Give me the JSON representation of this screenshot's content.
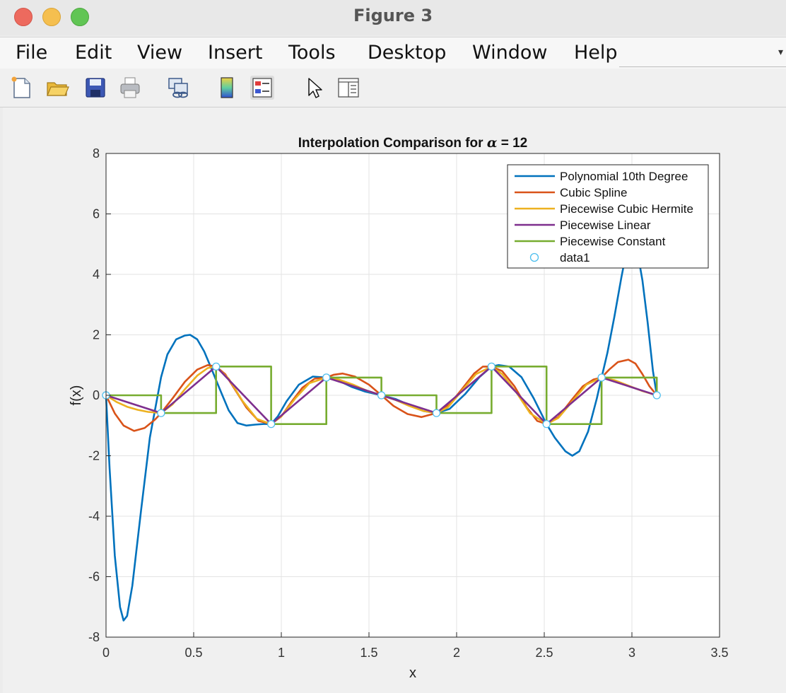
{
  "window": {
    "title": "Figure 3"
  },
  "menu": {
    "items": [
      "File",
      "Edit",
      "View",
      "Insert",
      "Tools",
      "Desktop",
      "Window",
      "Help"
    ]
  },
  "toolbar": {
    "buttons": [
      "new-figure",
      "open-file",
      "save",
      "print",
      "link-plot",
      "insert-colorbar",
      "insert-legend",
      "edit-plot-pointer",
      "property-inspector"
    ]
  },
  "chart_data": {
    "type": "line",
    "title": "Interpolation Comparison for α = 12",
    "title_prefix": "Interpolation Comparison for ",
    "title_symbol": "α",
    "title_suffix": " = 12",
    "xlabel": "x",
    "ylabel": "f(x)",
    "xlim": [
      0,
      3.5
    ],
    "ylim": [
      -8,
      8
    ],
    "xticks": [
      0,
      0.5,
      1,
      1.5,
      2,
      2.5,
      3,
      3.5
    ],
    "xtick_labels": [
      "0",
      "0.5",
      "1",
      "1.5",
      "2",
      "2.5",
      "3",
      "3.5"
    ],
    "yticks": [
      -8,
      -6,
      -4,
      -2,
      0,
      2,
      4,
      6,
      8
    ],
    "ytick_labels": [
      "-8",
      "-6",
      "-4",
      "-2",
      "0",
      "2",
      "4",
      "6",
      "8"
    ],
    "grid": true,
    "legend_position": "top-right",
    "nodes": {
      "x": [
        0,
        0.314,
        0.628,
        0.942,
        1.257,
        1.571,
        1.885,
        2.199,
        2.513,
        2.827,
        3.142
      ],
      "y": [
        0,
        -0.588,
        0.951,
        -0.951,
        0.588,
        0,
        -0.588,
        0.951,
        -0.951,
        0.588,
        0
      ]
    },
    "series": [
      {
        "name": "Polynomial 10th Degree",
        "color": "#0072BD",
        "style": "line",
        "x": [
          0,
          0.02,
          0.05,
          0.08,
          0.1,
          0.12,
          0.15,
          0.2,
          0.25,
          0.314,
          0.35,
          0.4,
          0.45,
          0.48,
          0.52,
          0.56,
          0.6,
          0.628,
          0.66,
          0.7,
          0.75,
          0.8,
          0.85,
          0.9,
          0.942,
          0.98,
          1.03,
          1.1,
          1.18,
          1.257,
          1.32,
          1.4,
          1.48,
          1.571,
          1.65,
          1.73,
          1.81,
          1.885,
          1.96,
          2.05,
          2.13,
          2.199,
          2.24,
          2.3,
          2.37,
          2.44,
          2.513,
          2.56,
          2.62,
          2.66,
          2.7,
          2.75,
          2.8,
          2.827,
          2.86,
          2.9,
          2.94,
          2.97,
          3.0,
          3.03,
          3.06,
          3.09,
          3.12,
          3.142
        ],
        "y": [
          0,
          -2.4,
          -5.3,
          -7.0,
          -7.45,
          -7.3,
          -6.3,
          -3.8,
          -1.4,
          0.6,
          1.35,
          1.85,
          1.98,
          2.0,
          1.85,
          1.45,
          0.9,
          0.5,
          0.05,
          -0.5,
          -0.92,
          -1.0,
          -0.97,
          -0.95,
          -0.95,
          -0.7,
          -0.2,
          0.35,
          0.62,
          0.588,
          0.5,
          0.28,
          0.12,
          0.0,
          -0.12,
          -0.32,
          -0.52,
          -0.588,
          -0.45,
          0.05,
          0.6,
          0.951,
          1.0,
          0.95,
          0.6,
          -0.1,
          -0.951,
          -1.4,
          -1.85,
          -2.0,
          -1.85,
          -1.2,
          -0.1,
          0.588,
          1.4,
          2.6,
          3.9,
          4.8,
          5.2,
          4.8,
          3.8,
          2.4,
          0.8,
          0.0
        ]
      },
      {
        "name": "Cubic Spline",
        "color": "#D95319",
        "style": "line",
        "x": [
          0,
          0.05,
          0.1,
          0.16,
          0.22,
          0.28,
          0.314,
          0.38,
          0.45,
          0.52,
          0.58,
          0.628,
          0.68,
          0.74,
          0.8,
          0.87,
          0.942,
          1.0,
          1.06,
          1.12,
          1.19,
          1.257,
          1.3,
          1.35,
          1.42,
          1.5,
          1.571,
          1.64,
          1.72,
          1.8,
          1.885,
          1.96,
          2.03,
          2.1,
          2.15,
          2.199,
          2.26,
          2.33,
          2.4,
          2.46,
          2.513,
          2.58,
          2.65,
          2.72,
          2.78,
          2.827,
          2.87,
          2.92,
          2.98,
          3.02,
          3.06,
          3.1,
          3.142
        ],
        "y": [
          0,
          -0.6,
          -1.0,
          -1.18,
          -1.08,
          -0.8,
          -0.588,
          -0.1,
          0.45,
          0.85,
          1.0,
          0.951,
          0.7,
          0.15,
          -0.4,
          -0.85,
          -0.951,
          -0.7,
          -0.2,
          0.25,
          0.55,
          0.588,
          0.68,
          0.72,
          0.62,
          0.35,
          0.0,
          -0.35,
          -0.62,
          -0.72,
          -0.588,
          -0.3,
          0.2,
          0.72,
          0.95,
          0.951,
          0.8,
          0.3,
          -0.4,
          -0.85,
          -0.951,
          -0.72,
          -0.2,
          0.3,
          0.52,
          0.588,
          0.85,
          1.1,
          1.18,
          1.05,
          0.7,
          0.3,
          0.0
        ]
      },
      {
        "name": "Piecewise Cubic Hermite",
        "color": "#EDB120",
        "style": "line",
        "x": [
          0,
          0.06,
          0.12,
          0.18,
          0.24,
          0.314,
          0.38,
          0.45,
          0.52,
          0.58,
          0.628,
          0.7,
          0.78,
          0.86,
          0.942,
          1.0,
          1.08,
          1.16,
          1.257,
          1.33,
          1.41,
          1.49,
          1.571,
          1.65,
          1.73,
          1.81,
          1.885,
          1.95,
          2.03,
          2.11,
          2.199,
          2.26,
          2.34,
          2.42,
          2.513,
          2.58,
          2.66,
          2.74,
          2.827,
          2.9,
          2.98,
          3.06,
          3.142
        ],
        "y": [
          0,
          -0.22,
          -0.38,
          -0.48,
          -0.55,
          -0.588,
          -0.3,
          0.2,
          0.65,
          0.9,
          0.951,
          0.55,
          -0.2,
          -0.78,
          -0.951,
          -0.7,
          -0.1,
          0.4,
          0.588,
          0.52,
          0.35,
          0.15,
          0.0,
          -0.15,
          -0.35,
          -0.52,
          -0.588,
          -0.4,
          0.15,
          0.7,
          0.951,
          0.7,
          0.1,
          -0.6,
          -0.951,
          -0.75,
          -0.2,
          0.35,
          0.588,
          0.5,
          0.32,
          0.14,
          0.0
        ]
      },
      {
        "name": "Piecewise Linear",
        "color": "#7E2F8E",
        "style": "line",
        "x": [
          0,
          0.314,
          0.628,
          0.942,
          1.257,
          1.571,
          1.885,
          2.199,
          2.513,
          2.827,
          3.142
        ],
        "y": [
          0,
          -0.588,
          0.951,
          -0.951,
          0.588,
          0,
          -0.588,
          0.951,
          -0.951,
          0.588,
          0
        ]
      },
      {
        "name": "Piecewise Constant",
        "color": "#77AC30",
        "style": "step",
        "x": [
          0,
          0.314,
          0.314,
          0.628,
          0.628,
          0.942,
          0.942,
          1.257,
          1.257,
          1.571,
          1.571,
          1.885,
          1.885,
          2.199,
          2.199,
          2.513,
          2.513,
          2.827,
          2.827,
          3.142,
          3.142
        ],
        "y": [
          0,
          0,
          -0.588,
          -0.588,
          0.951,
          0.951,
          -0.951,
          -0.951,
          0.588,
          0.588,
          0,
          0,
          -0.588,
          -0.588,
          0.951,
          0.951,
          -0.951,
          -0.951,
          0.588,
          0.588,
          0
        ]
      },
      {
        "name": "data1",
        "color": "#4DBEEE",
        "style": "markers",
        "marker": "o",
        "x": [
          0,
          0.314,
          0.628,
          0.942,
          1.257,
          1.571,
          1.885,
          2.199,
          2.513,
          2.827,
          3.142
        ],
        "y": [
          0,
          -0.588,
          0.951,
          -0.951,
          0.588,
          0,
          -0.588,
          0.951,
          -0.951,
          0.588,
          0
        ]
      }
    ]
  }
}
